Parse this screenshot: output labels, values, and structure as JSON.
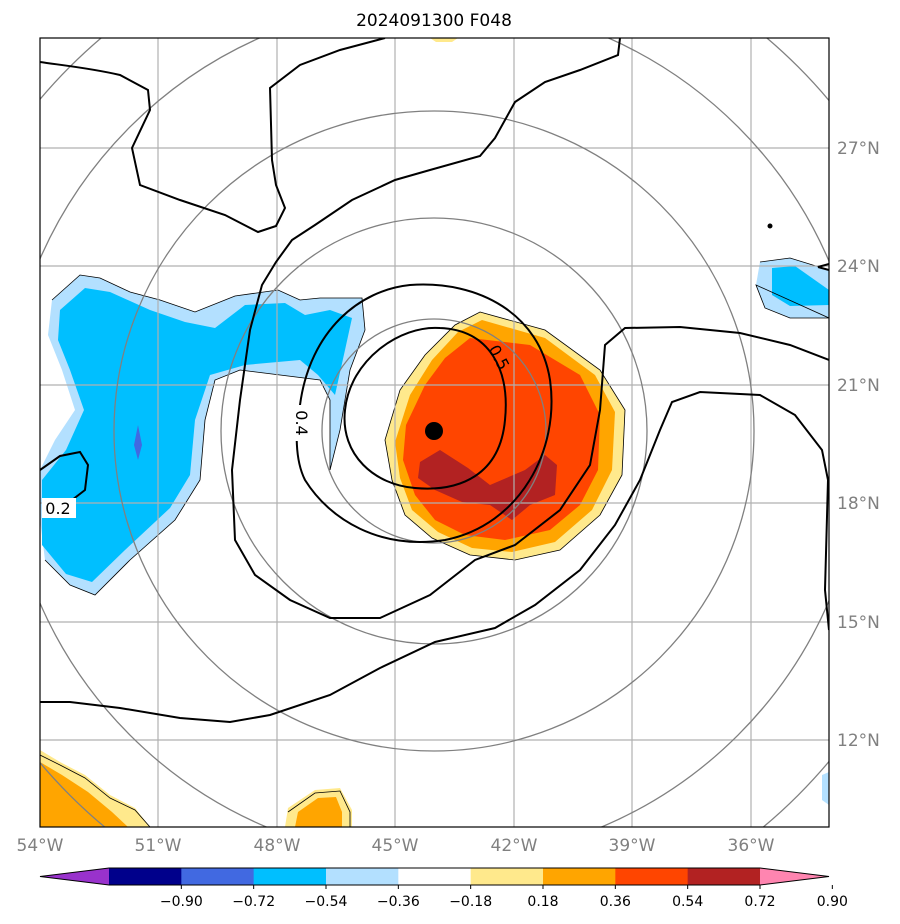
{
  "chart_data": {
    "type": "contour-map",
    "title": "2024091300 F048",
    "lon_ticks": [
      "54°W",
      "51°W",
      "48°W",
      "45°W",
      "42°W",
      "39°W",
      "36°W"
    ],
    "lat_ticks": [
      "12°N",
      "15°N",
      "18°N",
      "21°N",
      "24°N",
      "27°N"
    ],
    "lon_range": [
      -54,
      -34
    ],
    "lat_range": [
      9.8,
      29.8
    ],
    "storm_center": {
      "lon": -44.0,
      "lat": 19.8
    },
    "range_rings": 5,
    "contour_labels": [
      "0.2",
      "0.4",
      "0.5"
    ],
    "colorbar": {
      "ticks": [
        "−0.90",
        "−0.72",
        "−0.54",
        "−0.36",
        "−0.18",
        "0.18",
        "0.36",
        "0.54",
        "0.72",
        "0.90"
      ],
      "colors": [
        "#9932cc",
        "#00008b",
        "#4169e1",
        "#00bfff",
        "#b3e0ff",
        "#ffffff",
        "#ffe98c",
        "#ffa500",
        "#ff4500",
        "#b22222",
        "#ff85b0"
      ],
      "extend": "both"
    }
  }
}
